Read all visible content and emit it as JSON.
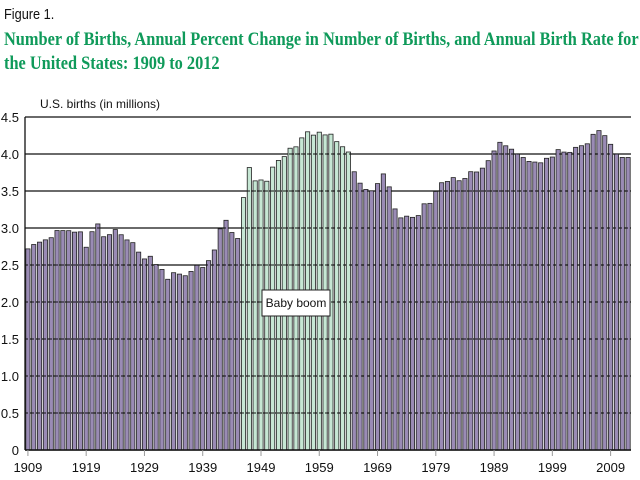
{
  "figure_label": "Figure 1.",
  "title": "Number of Births, Annual Percent Change in Number of Births, and Annual Birth Rate for the United States: 1909 to 2012",
  "chart_data": {
    "type": "bar",
    "ylabel": "U.S. births (in millions)",
    "xlabel": "",
    "ylim": [
      0,
      4.5
    ],
    "yticks": [
      0,
      0.5,
      1.0,
      1.5,
      2.0,
      2.5,
      3.0,
      3.5,
      4.0,
      4.5
    ],
    "ytick_labels": [
      "0",
      "0.5",
      "1.0",
      "1.5",
      "2.0",
      "2.5",
      "3.0",
      "3.5",
      "4.0",
      "4.5"
    ],
    "xtick_labels": [
      "1909",
      "1919",
      "1929",
      "1939",
      "1949",
      "1959",
      "1969",
      "1979",
      "1989",
      "1999",
      "2009"
    ],
    "grid": true,
    "x_start": 1909,
    "x_end": 2012,
    "values": [
      2.718,
      2.777,
      2.809,
      2.84,
      2.869,
      2.966,
      2.965,
      2.964,
      2.944,
      2.948,
      2.74,
      2.95,
      3.055,
      2.882,
      2.91,
      2.979,
      2.909,
      2.839,
      2.802,
      2.674,
      2.582,
      2.618,
      2.506,
      2.44,
      2.307,
      2.396,
      2.377,
      2.355,
      2.413,
      2.496,
      2.466,
      2.559,
      2.703,
      2.989,
      3.104,
      2.939,
      2.858,
      3.411,
      3.817,
      3.637,
      3.649,
      3.632,
      3.823,
      3.913,
      3.965,
      4.078,
      4.097,
      4.218,
      4.3,
      4.255,
      4.295,
      4.258,
      4.268,
      4.167,
      4.098,
      4.027,
      3.76,
      3.606,
      3.521,
      3.502,
      3.6,
      3.731,
      3.556,
      3.258,
      3.137,
      3.16,
      3.144,
      3.168,
      3.327,
      3.333,
      3.494,
      3.612,
      3.629,
      3.681,
      3.639,
      3.669,
      3.761,
      3.757,
      3.809,
      3.91,
      4.041,
      4.158,
      4.111,
      4.065,
      4.0,
      3.953,
      3.9,
      3.891,
      3.881,
      3.942,
      3.959,
      4.059,
      4.026,
      4.022,
      4.09,
      4.112,
      4.138,
      4.266,
      4.316,
      4.248,
      4.131,
      3.999,
      3.954,
      3.953
    ],
    "highlight": {
      "label": "Baby boom",
      "start": 1946,
      "end": 1964
    },
    "colors": {
      "bar": "#9a8bb5",
      "highlight": "#c6e7d4",
      "outline": "#222222",
      "title": "#0f9a5a"
    }
  }
}
